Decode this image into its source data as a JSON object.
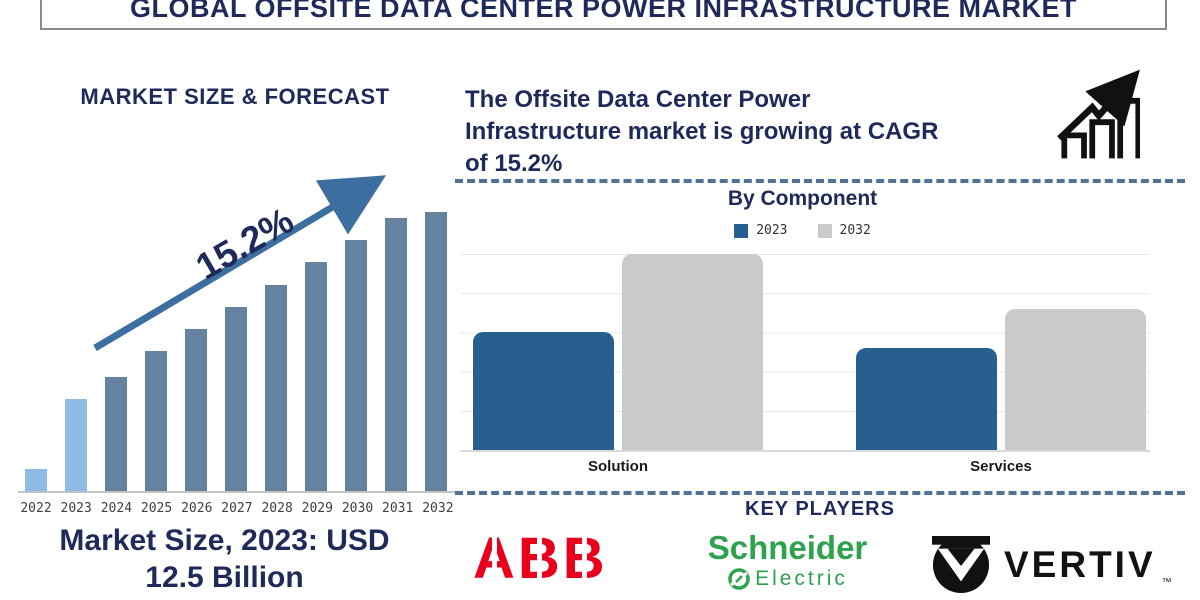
{
  "header": {
    "title": "GLOBAL OFFSITE DATA CENTER POWER INFRASTRUCTURE MARKET"
  },
  "left_panel": {
    "chart_title": "MARKET SIZE & FORECAST",
    "cagr_annotation": "15.2%",
    "caption_line1": "Market Size, 2023: USD",
    "caption_line2": "12.5 Billion"
  },
  "right_panel": {
    "summary_line1": "The Offsite Data Center Power",
    "summary_line2": "Infrastructure market is growing at CAGR",
    "summary_line3": "of 15.2%",
    "growth_icon": "growth-chart-icon",
    "key_players": {
      "title": "KEY PLAYERS",
      "abb": "ABB",
      "schneider_line1": "Schneider",
      "schneider_line2": "Electric",
      "vertiv": "VERTIV",
      "vertiv_tm": "™"
    }
  },
  "colors": {
    "navy": "#1f2a5a",
    "bar_steel": "#65839f",
    "bar_light": "#8fbce4",
    "arrow_blue": "#3c6e9f",
    "bc_blue": "#275f90",
    "bc_gray": "#c9caca",
    "grid_gray": "#e8e8e8",
    "axis_gray": "#c2c2c2",
    "dash_blue": "#4f7396",
    "abb_red": "#e8001c",
    "schneider_green": "#2ea24d",
    "ink": "#111111",
    "tick_gray": "#3f3f3f",
    "border_gray": "#8a8a8a"
  },
  "chart_data": [
    {
      "type": "bar",
      "title": "MARKET SIZE & FORECAST",
      "categories": [
        "2022",
        "2023",
        "2024",
        "2025",
        "2026",
        "2027",
        "2028",
        "2029",
        "2030",
        "2031",
        "2032"
      ],
      "values_relative_pct": [
        8,
        33,
        41,
        50,
        58,
        66,
        74,
        82,
        90,
        98,
        100
      ],
      "highlight_light_blue_indices": [
        0,
        1
      ],
      "annotation": "15.2%",
      "known_value": "Market Size, 2023: USD 12.5 Billion",
      "xlabel": "",
      "ylabel": "",
      "axis_values_shown": false,
      "grid": false
    },
    {
      "type": "bar",
      "title": "By Component",
      "categories": [
        "Solution",
        "Services"
      ],
      "series": [
        {
          "name": "2023",
          "color": "#275f90",
          "values_relative_pct": [
            60,
            52
          ]
        },
        {
          "name": "2032",
          "color": "#c9caca",
          "values_relative_pct": [
            100,
            72
          ]
        }
      ],
      "legend_position": "top",
      "grid": true,
      "axis_values_shown": false
    }
  ]
}
